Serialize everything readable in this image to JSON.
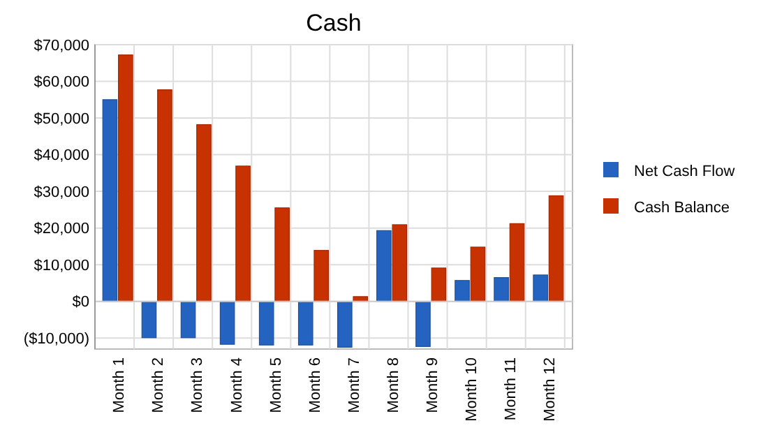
{
  "chart_data": {
    "type": "bar",
    "title": "Cash",
    "categories": [
      "Month 1",
      "Month 2",
      "Month 3",
      "Month 4",
      "Month 5",
      "Month 6",
      "Month 7",
      "Month 8",
      "Month 9",
      "Month 10",
      "Month 11",
      "Month 12"
    ],
    "series": [
      {
        "name": "Net Cash Flow",
        "color": "#2563c0",
        "values": [
          55000,
          -9900,
          -9900,
          -11700,
          -11900,
          -11900,
          -12500,
          19300,
          -12300,
          5700,
          6500,
          7200
        ]
      },
      {
        "name": "Cash Balance",
        "color": "#c83200",
        "values": [
          67200,
          57700,
          48200,
          36900,
          25500,
          13900,
          1300,
          20900,
          9100,
          14800,
          21200,
          28800
        ]
      }
    ],
    "ylim": [
      -13000,
      70000
    ],
    "yticks": [
      {
        "value": -10000,
        "label": "($10,000)"
      },
      {
        "value": 0,
        "label": "$0"
      },
      {
        "value": 10000,
        "label": "$10,000"
      },
      {
        "value": 20000,
        "label": "$20,000"
      },
      {
        "value": 30000,
        "label": "$30,000"
      },
      {
        "value": 40000,
        "label": "$40,000"
      },
      {
        "value": 50000,
        "label": "$50,000"
      },
      {
        "value": 60000,
        "label": "$60,000"
      },
      {
        "value": 70000,
        "label": "$70,000"
      }
    ],
    "grid": true,
    "legend": "right"
  }
}
